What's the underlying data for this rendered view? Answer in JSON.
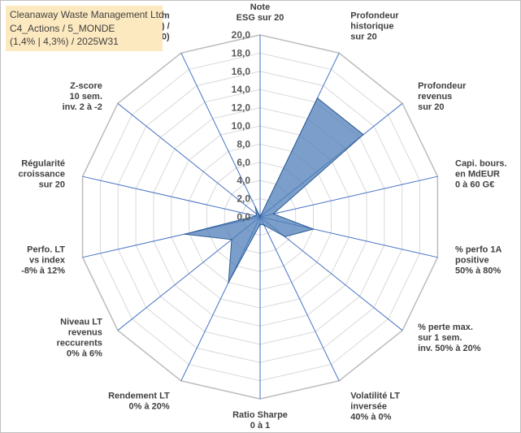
{
  "header": {
    "line1": "Cleanaway Waste Management Ltd",
    "line2": "C4_Actions / 5_MONDE",
    "line3": "(1,4% | 4,3%) / 2025W31"
  },
  "colors": {
    "fill": "#4f7fb8",
    "fill_opacity": 0.75,
    "stroke": "#2f5d94",
    "grid": "#d9d9d9",
    "spoke": "#4472c4",
    "header_bg": "#fde9c0"
  },
  "chart_data": {
    "type": "radar",
    "title": "",
    "rmax": 20,
    "ticks": [
      "0,0",
      "2,0",
      "4,0",
      "6,0",
      "8,0",
      "10,0",
      "12,0",
      "14,0",
      "16,0",
      "18,0",
      "20,0"
    ],
    "tick_values": [
      0,
      2,
      4,
      6,
      8,
      10,
      12,
      14,
      16,
      18,
      20
    ],
    "grid": true,
    "categories": [
      [
        "Note",
        "ESG sur 20"
      ],
      [
        "Profondeur",
        "historique",
        "sur 20"
      ],
      [
        "Profondeur",
        "revenus",
        "sur 20"
      ],
      [
        "Capi. bours.",
        "en MdEUR",
        "0 à 60 G€"
      ],
      [
        "% perfo 1A",
        "positive",
        "50% à 80%"
      ],
      [
        "% perte max.",
        "sur 1 sem.",
        "inv. 50% à 20%"
      ],
      [
        "Volatilité LT",
        "inversée",
        "40% à 0%"
      ],
      [
        "Ratio Sharpe",
        "0 à 1"
      ],
      [
        "Rendement LT",
        "0% à 20%"
      ],
      [
        "Niveau LT",
        "revenus",
        "reccurents",
        "0% à 6%"
      ],
      [
        "Perfo. LT",
        "vs index",
        "-8% à 12%"
      ],
      [
        "Régularité",
        "croissance",
        "sur 20"
      ],
      [
        "Z-score",
        "10 sem.",
        "inv. 2 à -2"
      ],
      [
        "Momentum",
        "Achat (20) /",
        "Vente (0)"
      ]
    ],
    "series": [
      {
        "values": [
          0,
          14.5,
          14.5,
          1.5,
          6.0,
          3.5,
          1.0,
          0.8,
          8.0,
          4.0,
          8.5,
          0.5,
          0.5,
          1.2
        ]
      }
    ]
  }
}
